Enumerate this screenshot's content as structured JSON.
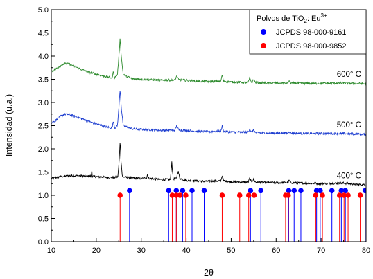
{
  "chart_data": {
    "type": "line",
    "xlabel": "2θ",
    "ylabel": "Intensidad (u.a.)",
    "xlim": [
      10,
      80
    ],
    "ylim": [
      0.0,
      5.0
    ],
    "xticks": [
      10,
      20,
      30,
      40,
      50,
      60,
      70,
      80
    ],
    "yticks": [
      "0.0",
      "0.5",
      "1.0",
      "1.5",
      "2.0",
      "2.5",
      "3.0",
      "3.5",
      "4.0",
      "4.5",
      "5.0"
    ],
    "series": [
      {
        "name": "400° C",
        "color": "#000000",
        "points": [
          [
            10,
            1.36
          ],
          [
            11,
            1.38
          ],
          [
            12,
            1.4
          ],
          [
            14,
            1.42
          ],
          [
            16,
            1.42
          ],
          [
            18,
            1.41
          ],
          [
            18.9,
            1.41
          ],
          [
            19.0,
            1.58
          ],
          [
            19.1,
            1.41
          ],
          [
            20,
            1.4
          ],
          [
            22,
            1.39
          ],
          [
            24,
            1.38
          ],
          [
            24.8,
            1.4
          ],
          [
            25.1,
            1.75
          ],
          [
            25.3,
            2.18
          ],
          [
            25.5,
            1.75
          ],
          [
            25.8,
            1.4
          ],
          [
            27,
            1.38
          ],
          [
            30,
            1.36
          ],
          [
            31.2,
            1.37
          ],
          [
            31.4,
            1.46
          ],
          [
            31.6,
            1.37
          ],
          [
            34,
            1.34
          ],
          [
            36.5,
            1.34
          ],
          [
            36.8,
            1.72
          ],
          [
            37.1,
            1.35
          ],
          [
            37.8,
            1.36
          ],
          [
            38.2,
            1.52
          ],
          [
            38.6,
            1.36
          ],
          [
            40,
            1.32
          ],
          [
            44,
            1.3
          ],
          [
            47.7,
            1.31
          ],
          [
            48.0,
            1.42
          ],
          [
            48.3,
            1.31
          ],
          [
            50,
            1.29
          ],
          [
            53.8,
            1.28
          ],
          [
            54.1,
            1.36
          ],
          [
            54.5,
            1.29
          ],
          [
            55.0,
            1.34
          ],
          [
            55.4,
            1.28
          ],
          [
            58,
            1.27
          ],
          [
            62.6,
            1.27
          ],
          [
            62.9,
            1.32
          ],
          [
            63.2,
            1.27
          ],
          [
            66,
            1.26
          ],
          [
            70,
            1.25
          ],
          [
            75,
            1.26
          ],
          [
            76,
            1.25
          ],
          [
            80,
            1.22
          ]
        ]
      },
      {
        "name": "500° C",
        "color": "#1f3fd0",
        "points": [
          [
            10,
            2.55
          ],
          [
            11,
            2.62
          ],
          [
            12,
            2.7
          ],
          [
            13,
            2.75
          ],
          [
            14,
            2.74
          ],
          [
            16,
            2.68
          ],
          [
            18,
            2.6
          ],
          [
            20,
            2.54
          ],
          [
            22,
            2.48
          ],
          [
            23.5,
            2.45
          ],
          [
            23.8,
            2.6
          ],
          [
            24.1,
            2.45
          ],
          [
            24.7,
            2.5
          ],
          [
            25.0,
            2.85
          ],
          [
            25.3,
            3.29
          ],
          [
            25.6,
            2.85
          ],
          [
            26,
            2.5
          ],
          [
            28,
            2.43
          ],
          [
            30,
            2.42
          ],
          [
            34,
            2.4
          ],
          [
            37.5,
            2.4
          ],
          [
            37.9,
            2.5
          ],
          [
            38.3,
            2.41
          ],
          [
            42,
            2.38
          ],
          [
            45,
            2.37
          ],
          [
            47.7,
            2.38
          ],
          [
            48.0,
            2.49
          ],
          [
            48.3,
            2.38
          ],
          [
            50,
            2.36
          ],
          [
            53.8,
            2.36
          ],
          [
            54.1,
            2.43
          ],
          [
            54.5,
            2.36
          ],
          [
            55.0,
            2.41
          ],
          [
            55.4,
            2.35
          ],
          [
            58,
            2.34
          ],
          [
            62.6,
            2.34
          ],
          [
            62.9,
            2.38
          ],
          [
            63.2,
            2.34
          ],
          [
            66,
            2.33
          ],
          [
            70,
            2.33
          ],
          [
            75,
            2.33
          ],
          [
            80,
            2.31
          ]
        ]
      },
      {
        "name": "600° C",
        "color": "#2e8b2e",
        "points": [
          [
            10,
            3.67
          ],
          [
            11,
            3.72
          ],
          [
            12,
            3.79
          ],
          [
            13,
            3.84
          ],
          [
            14,
            3.83
          ],
          [
            16,
            3.74
          ],
          [
            18,
            3.66
          ],
          [
            20,
            3.61
          ],
          [
            22,
            3.56
          ],
          [
            23.5,
            3.53
          ],
          [
            23.8,
            3.66
          ],
          [
            24.1,
            3.53
          ],
          [
            24.7,
            3.6
          ],
          [
            25.0,
            3.95
          ],
          [
            25.3,
            4.39
          ],
          [
            25.6,
            3.95
          ],
          [
            26,
            3.6
          ],
          [
            28,
            3.51
          ],
          [
            30,
            3.5
          ],
          [
            34,
            3.48
          ],
          [
            37.5,
            3.48
          ],
          [
            37.9,
            3.58
          ],
          [
            38.3,
            3.49
          ],
          [
            42,
            3.46
          ],
          [
            45,
            3.45
          ],
          [
            47.7,
            3.46
          ],
          [
            48.0,
            3.59
          ],
          [
            48.3,
            3.46
          ],
          [
            50,
            3.44
          ],
          [
            53.8,
            3.43
          ],
          [
            54.1,
            3.52
          ],
          [
            54.5,
            3.44
          ],
          [
            55.0,
            3.49
          ],
          [
            55.4,
            3.43
          ],
          [
            58,
            3.42
          ],
          [
            62.6,
            3.42
          ],
          [
            62.9,
            3.47
          ],
          [
            63.2,
            3.42
          ],
          [
            66,
            3.41
          ],
          [
            70,
            3.41
          ],
          [
            75,
            3.42
          ],
          [
            80,
            3.4
          ]
        ]
      }
    ],
    "legend": {
      "position": "top-right",
      "title_prefix": "Polvos de TiO",
      "title_sub": "2",
      "title_middle": ": Eu",
      "title_sup": "3+",
      "entries": [
        {
          "label": "JCPDS 98-000-9161",
          "color": "#0000ff"
        },
        {
          "label": "JCPDS 98-000-9852",
          "color": "#ff0000"
        }
      ]
    },
    "reference_series": [
      {
        "name": "JCPDS 98-000-9161",
        "color": "#0000ff",
        "value": 1.1,
        "x": [
          27.4,
          36.1,
          37.8,
          39.2,
          41.3,
          44.0,
          54.3,
          56.6,
          62.8,
          64.0,
          65.5,
          69.0,
          69.8,
          72.4,
          74.5,
          75.4,
          79.8
        ]
      },
      {
        "name": "JCPDS 98-000-9852",
        "color": "#ff0000",
        "value": 1.0,
        "x": [
          25.3,
          36.9,
          37.8,
          38.6,
          39.9,
          48.0,
          51.9,
          53.9,
          55.1,
          62.1,
          62.7,
          68.8,
          70.3,
          74.1,
          75.1,
          76.0,
          78.7
        ]
      }
    ]
  }
}
